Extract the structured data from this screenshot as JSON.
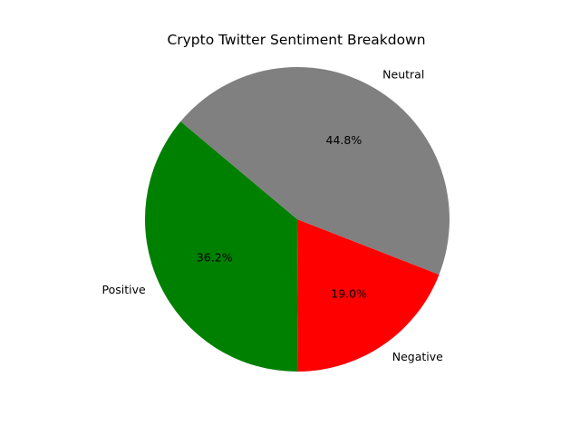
{
  "chart_data": {
    "type": "pie",
    "title": "Crypto Twitter Sentiment Breakdown",
    "slices": [
      {
        "label": "Positive",
        "value": 36.2,
        "pct_label": "36.2%",
        "color": "#008000"
      },
      {
        "label": "Negative",
        "value": 19.0,
        "pct_label": "19.0%",
        "color": "#ff0000"
      },
      {
        "label": "Neutral",
        "value": 44.8,
        "pct_label": "44.8%",
        "color": "#808080"
      }
    ],
    "start_angle_deg": 140,
    "direction": "counterclockwise",
    "legend": "none"
  }
}
